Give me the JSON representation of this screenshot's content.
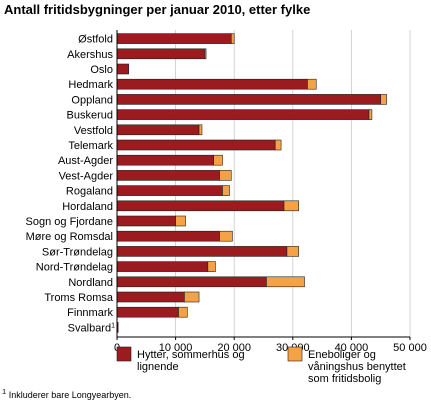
{
  "chart_data": {
    "type": "bar",
    "orientation": "horizontal",
    "stacked": true,
    "title": "Antall fritidsbygninger per januar 2010, etter fylke",
    "categories": [
      "Østfold",
      "Akershus",
      "Oslo",
      "Hedmark",
      "Oppland",
      "Buskerud",
      "Vestfold",
      "Telemark",
      "Aust-Agder",
      "Vest-Agder",
      "Rogaland",
      "Hordaland",
      "Sogn og Fjordane",
      "Møre og Romsdal",
      "Sør-Trøndelag",
      "Nord-Trøndelag",
      "Nordland",
      "Troms Romsa",
      "Finnmark",
      "Svalbard"
    ],
    "category_note_marks": [
      "",
      "",
      "",
      "",
      "",
      "",
      "",
      "",
      "",
      "",
      "",
      "",
      "",
      "",
      "",
      "",
      "",
      "",
      "",
      "1"
    ],
    "series": [
      {
        "name": "Hytter, sommerhus og lignende",
        "color": "#9b1b1e",
        "values": [
          19500,
          15000,
          2000,
          32500,
          45000,
          43000,
          14000,
          27000,
          16500,
          17500,
          18000,
          28500,
          10000,
          17500,
          29000,
          15500,
          25500,
          11500,
          10500,
          200
        ]
      },
      {
        "name": "Eneboliger og våningshus benyttet som fritidsbolig",
        "color": "#f5a146",
        "values": [
          500,
          200,
          0,
          1500,
          1000,
          500,
          500,
          1000,
          1500,
          2000,
          1200,
          2500,
          1700,
          2200,
          2000,
          1300,
          6500,
          2500,
          1500,
          0
        ]
      }
    ],
    "x_ticks": [
      "0",
      "10 000",
      "20 000",
      "30 000",
      "40 000",
      "50 000"
    ],
    "xlim": [
      0,
      50000
    ],
    "grid": true,
    "legend_position": "bottom"
  },
  "legend": {
    "item1_label": "Hytter, sommerhus og lignende",
    "item2_label": "Eneboliger og våningshus benyttet som fritidsbolig"
  },
  "footnote": {
    "mark": "1",
    "text": "Inkluderer bare Longyearbyen."
  }
}
